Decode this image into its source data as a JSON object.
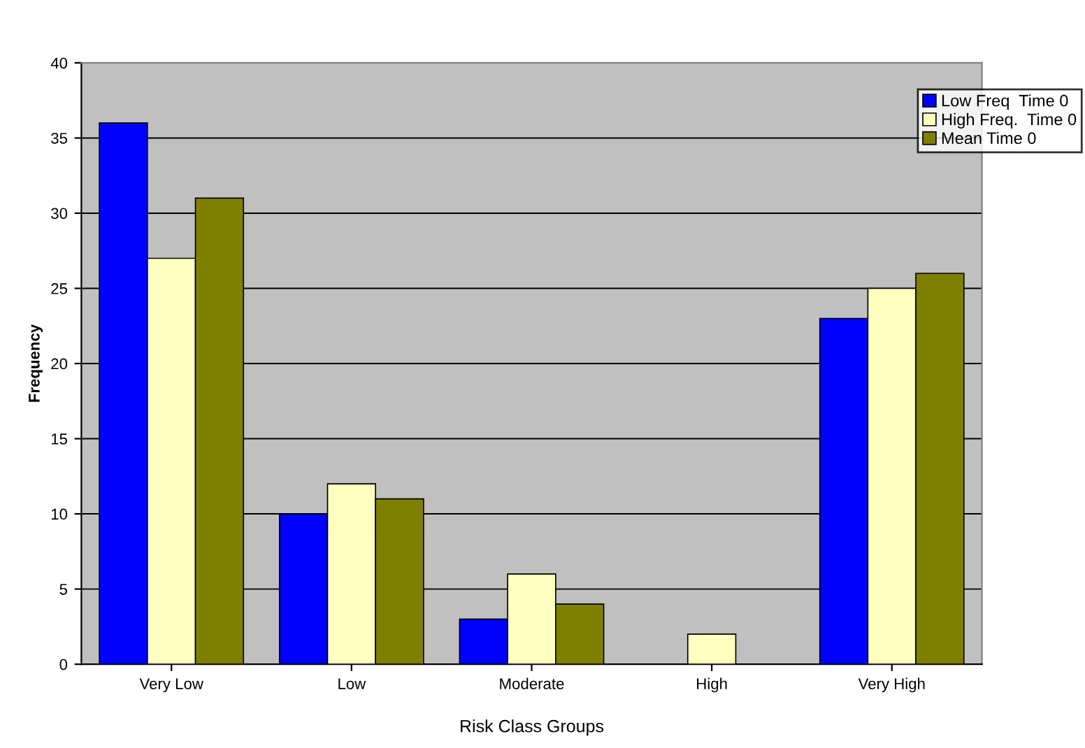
{
  "chart_data": {
    "type": "bar",
    "xlabel": "Risk Class Groups",
    "ylabel": "Frequency",
    "categories": [
      "Very Low",
      "Low",
      "Moderate",
      "High",
      "Very High"
    ],
    "series": [
      {
        "name": "Low Freq  Time 0",
        "color": "#0000ff",
        "values": [
          36,
          10,
          3,
          0,
          23
        ]
      },
      {
        "name": "High Freq.  Time 0",
        "color": "#ffffc0",
        "values": [
          27,
          12,
          6,
          2,
          25
        ]
      },
      {
        "name": "Mean Time 0",
        "color": "#808000",
        "values": [
          31,
          11,
          4,
          0,
          26
        ]
      }
    ],
    "ylim": [
      0,
      40
    ],
    "yticks": [
      0,
      5,
      10,
      15,
      20,
      25,
      30,
      35,
      40
    ],
    "grid": "y",
    "legend": "top right"
  }
}
